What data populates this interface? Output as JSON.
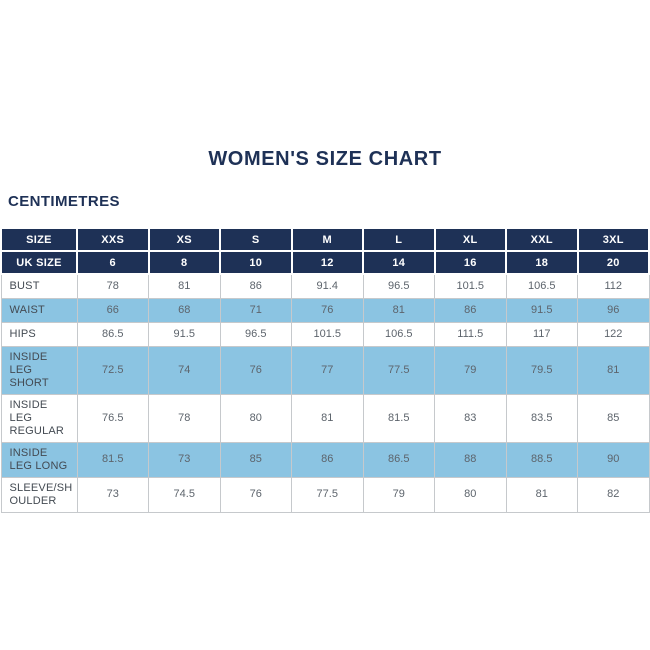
{
  "page": {
    "title": "WOMEN'S SIZE CHART",
    "unit_label": "CENTIMETRES"
  },
  "colors": {
    "navy_header": "#1e3156",
    "highlight_blue": "#8bc4e2",
    "body_border": "#c6c9cc",
    "title_text": "#1e3156",
    "cell_text": "#5d646c"
  },
  "table": {
    "header_rows": [
      {
        "label": "SIZE",
        "values": [
          "XXS",
          "XS",
          "S",
          "M",
          "L",
          "XL",
          "XXL",
          "3XL"
        ]
      },
      {
        "label": "UK SIZE",
        "values": [
          "6",
          "8",
          "10",
          "12",
          "14",
          "16",
          "18",
          "20"
        ]
      }
    ],
    "rows": [
      {
        "label": "BUST",
        "highlight": false,
        "values": [
          "78",
          "81",
          "86",
          "91.4",
          "96.5",
          "101.5",
          "106.5",
          "112"
        ]
      },
      {
        "label": "WAIST",
        "highlight": true,
        "values": [
          "66",
          "68",
          "71",
          "76",
          "81",
          "86",
          "91.5",
          "96"
        ]
      },
      {
        "label": "HIPS",
        "highlight": false,
        "values": [
          "86.5",
          "91.5",
          "96.5",
          "101.5",
          "106.5",
          "111.5",
          "117",
          "122"
        ]
      },
      {
        "label": "INSIDE LEG SHORT",
        "highlight": true,
        "values": [
          "72.5",
          "74",
          "76",
          "77",
          "77.5",
          "79",
          "79.5",
          "81"
        ]
      },
      {
        "label": "INSIDE LEG REGULAR",
        "highlight": false,
        "values": [
          "76.5",
          "78",
          "80",
          "81",
          "81.5",
          "83",
          "83.5",
          "85"
        ]
      },
      {
        "label": "INSIDE LEG LONG",
        "highlight": true,
        "values": [
          "81.5",
          "73",
          "85",
          "86",
          "86.5",
          "88",
          "88.5",
          "90"
        ]
      },
      {
        "label": "SLEEVE/SHOULDER",
        "highlight": false,
        "values": [
          "73",
          "74.5",
          "76",
          "77.5",
          "79",
          "80",
          "81",
          "82"
        ]
      }
    ]
  },
  "chart_data": {
    "type": "table",
    "title": "WOMEN'S SIZE CHART",
    "unit": "CENTIMETRES",
    "columns": [
      "SIZE",
      "XXS",
      "XS",
      "S",
      "M",
      "L",
      "XL",
      "XXL",
      "3XL"
    ],
    "uk_sizes": [
      6,
      8,
      10,
      12,
      14,
      16,
      18,
      20
    ],
    "rows": [
      {
        "measurement": "BUST",
        "values_cm": [
          78,
          81,
          86,
          91.4,
          96.5,
          101.5,
          106.5,
          112
        ]
      },
      {
        "measurement": "WAIST",
        "values_cm": [
          66,
          68,
          71,
          76,
          81,
          86,
          91.5,
          96
        ]
      },
      {
        "measurement": "HIPS",
        "values_cm": [
          86.5,
          91.5,
          96.5,
          101.5,
          106.5,
          111.5,
          117,
          122
        ]
      },
      {
        "measurement": "INSIDE LEG SHORT",
        "values_cm": [
          72.5,
          74,
          76,
          77,
          77.5,
          79,
          79.5,
          81
        ]
      },
      {
        "measurement": "INSIDE LEG REGULAR",
        "values_cm": [
          76.5,
          78,
          80,
          81,
          81.5,
          83,
          83.5,
          85
        ]
      },
      {
        "measurement": "INSIDE LEG LONG",
        "values_cm": [
          81.5,
          73,
          85,
          86,
          86.5,
          88,
          88.5,
          90
        ]
      },
      {
        "measurement": "SLEEVE/SHOULDER",
        "values_cm": [
          73,
          74.5,
          76,
          77.5,
          79,
          80,
          81,
          82
        ]
      }
    ],
    "layout": {
      "header_style": "navy",
      "alternating_row_highlight": "light-blue",
      "grid": true
    }
  }
}
